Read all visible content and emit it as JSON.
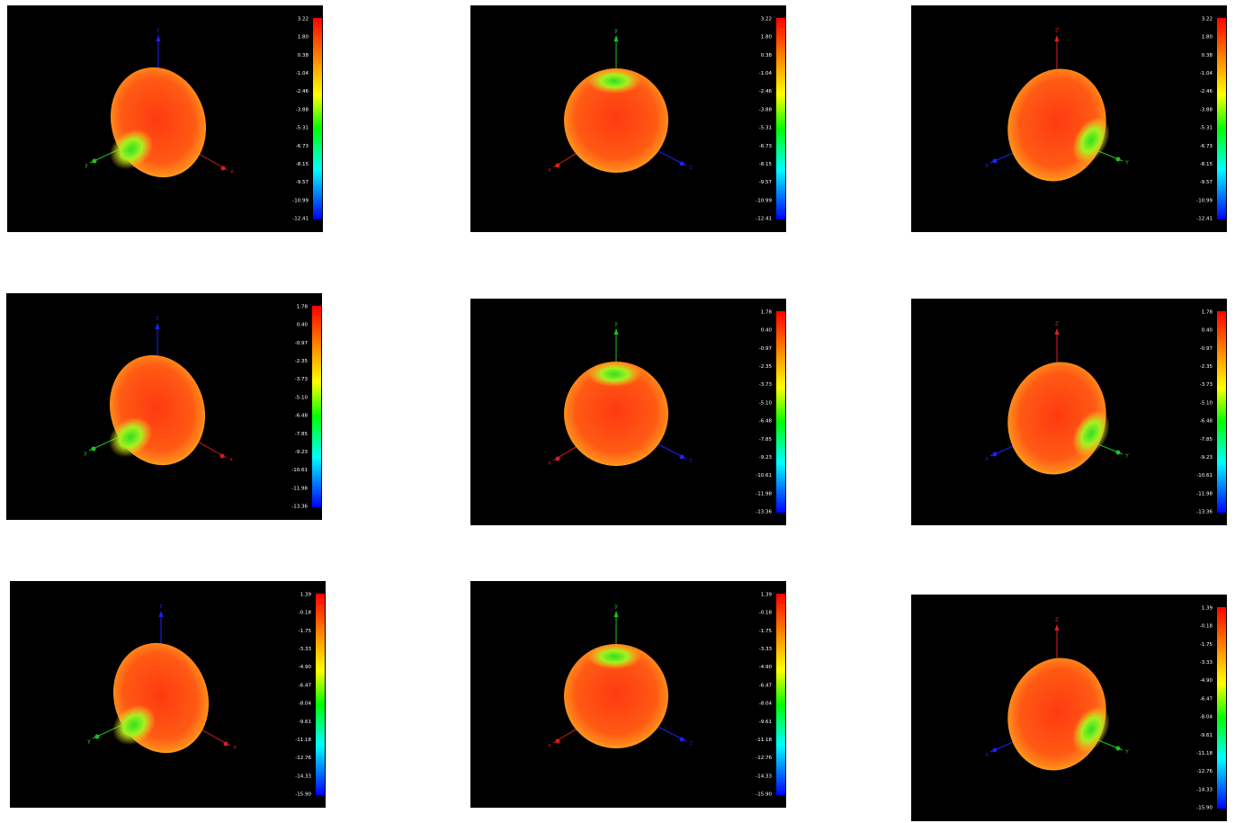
{
  "panels": [
    {
      "colorbar": [
        "3.22",
        "1.80",
        "0.38",
        "-1.04",
        "-2.46",
        "-3.88",
        "-5.31",
        "-6.73",
        "-8.15",
        "-9.57",
        "-10.99",
        "-12.41"
      ],
      "axes": {
        "vertical": "z",
        "left": "y",
        "right": "x"
      }
    },
    {
      "colorbar": [
        "3.22",
        "1.80",
        "0.38",
        "-1.04",
        "-2.46",
        "-3.88",
        "-5.31",
        "-6.73",
        "-8.15",
        "-9.57",
        "-10.99",
        "-12.41"
      ],
      "axes": {
        "vertical": "y",
        "left": "x",
        "right": "z"
      }
    },
    {
      "colorbar": [
        "3.22",
        "1.80",
        "0.38",
        "-1.04",
        "-2.46",
        "-3.88",
        "-5.31",
        "-6.73",
        "-8.15",
        "-9.57",
        "-10.99",
        "-12.41"
      ],
      "axes": {
        "vertical": "Z",
        "left": "x",
        "right": "Y"
      }
    },
    {
      "colorbar": [
        "1.78",
        "0.40",
        "-0.97",
        "-2.35",
        "-3.73",
        "-5.10",
        "-6.48",
        "-7.85",
        "-9.23",
        "-10.61",
        "-11.98",
        "-13.36"
      ],
      "axes": {
        "vertical": "z",
        "left": "y",
        "right": "x"
      }
    },
    {
      "colorbar": [
        "1.78",
        "0.40",
        "-0.97",
        "-2.35",
        "-3.73",
        "-5.10",
        "-6.48",
        "-7.85",
        "-9.23",
        "-10.61",
        "-11.98",
        "-13.36"
      ],
      "axes": {
        "vertical": "y",
        "left": "x",
        "right": "z"
      }
    },
    {
      "colorbar": [
        "1.78",
        "0.40",
        "-0.97",
        "-2.35",
        "-3.73",
        "-5.10",
        "-6.48",
        "-7.85",
        "-9.23",
        "-10.61",
        "-11.98",
        "-13.36"
      ],
      "axes": {
        "vertical": "Z",
        "left": "x",
        "right": "Y"
      }
    },
    {
      "colorbar": [
        "1.39",
        "-0.18",
        "-1.75",
        "-3.33",
        "-4.90",
        "-6.47",
        "-8.04",
        "-9.61",
        "-11.18",
        "-12.76",
        "-14.33",
        "-15.90"
      ],
      "axes": {
        "vertical": "z",
        "left": "y",
        "right": "x"
      }
    },
    {
      "colorbar": [
        "1.39",
        "-0.18",
        "-1.75",
        "-3.33",
        "-4.90",
        "-6.47",
        "-8.04",
        "-9.61",
        "-11.18",
        "-12.76",
        "-14.33",
        "-15.90"
      ],
      "axes": {
        "vertical": "y",
        "left": "x",
        "right": "z"
      }
    },
    {
      "colorbar": [
        "1.39",
        "-0.18",
        "-1.75",
        "-3.33",
        "-4.90",
        "-6.47",
        "-8.04",
        "-9.61",
        "-11.18",
        "-12.76",
        "-14.33",
        "-15.90"
      ],
      "axes": {
        "vertical": "Z",
        "left": "x",
        "right": "Y"
      }
    }
  ]
}
